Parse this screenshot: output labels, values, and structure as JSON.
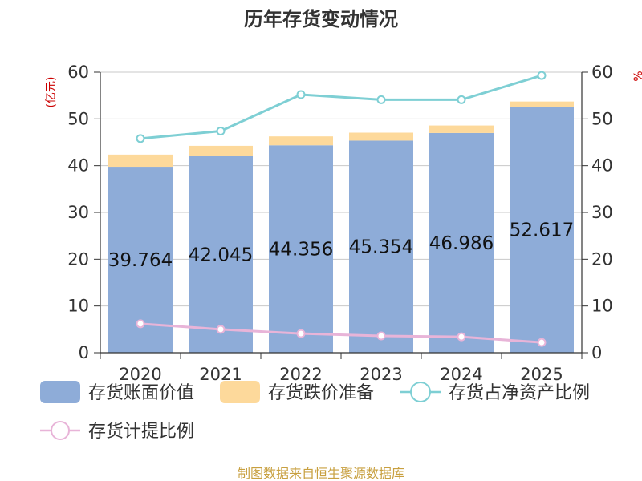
{
  "chart_data": {
    "type": "bar",
    "title": "历年存货变动情况",
    "y_unit_left": "(亿元)",
    "y_unit_right": "%",
    "categories": [
      "2020",
      "2021",
      "2022",
      "2023",
      "2024",
      "2025"
    ],
    "ylim_left": [
      0,
      60
    ],
    "ylim_right": [
      0,
      60
    ],
    "yticks": [
      0,
      10,
      20,
      30,
      40,
      50,
      60
    ],
    "grid": true,
    "legend_position": "bottom",
    "series": [
      {
        "name": "存货账面价值",
        "type": "bar",
        "stack": "a",
        "axis": "left",
        "color": "#8eacd8",
        "values": [
          39.764,
          42.045,
          44.356,
          45.354,
          46.986,
          52.617
        ],
        "labels": [
          "39.764",
          "42.045",
          "44.356",
          "45.354",
          "46.986",
          "52.617"
        ]
      },
      {
        "name": "存货跌价准备",
        "type": "bar",
        "stack": "a",
        "axis": "left",
        "color": "#fdd99b",
        "values": [
          2.6,
          2.2,
          1.9,
          1.7,
          1.6,
          1.1
        ]
      },
      {
        "name": "存货占净资产比例",
        "type": "line",
        "axis": "right",
        "color": "#7ecfd4",
        "values": [
          45.8,
          47.4,
          55.2,
          54.1,
          54.1,
          59.3
        ]
      },
      {
        "name": "存货计提比例",
        "type": "line",
        "axis": "right",
        "color": "#e8b4d8",
        "values": [
          6.2,
          5.0,
          4.1,
          3.6,
          3.4,
          2.2
        ]
      }
    ]
  },
  "footer": {
    "source": "制图数据来自恒生聚源数据库"
  }
}
